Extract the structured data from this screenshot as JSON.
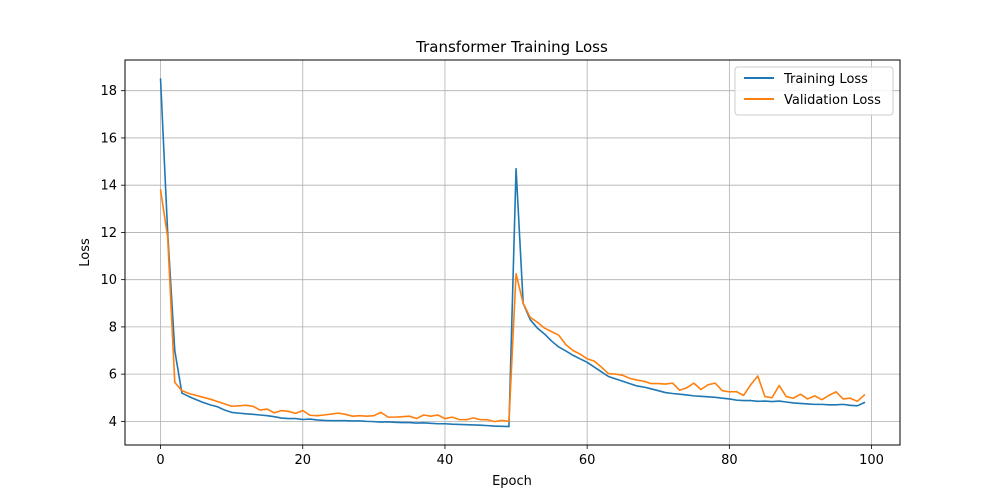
{
  "chart_data": {
    "type": "line",
    "title": "Transformer Training Loss",
    "xlabel": "Epoch",
    "ylabel": "Loss",
    "xlim": [
      -5,
      104
    ],
    "ylim": [
      3.0,
      19.3
    ],
    "xticks": [
      0,
      20,
      40,
      60,
      80,
      100
    ],
    "yticks": [
      4,
      6,
      8,
      10,
      12,
      14,
      16,
      18
    ],
    "grid": true,
    "legend_position": "top-right",
    "x": [
      0,
      1,
      2,
      3,
      4,
      5,
      6,
      7,
      8,
      9,
      10,
      11,
      12,
      13,
      14,
      15,
      16,
      17,
      18,
      19,
      20,
      21,
      22,
      23,
      24,
      25,
      26,
      27,
      28,
      29,
      30,
      31,
      32,
      33,
      34,
      35,
      36,
      37,
      38,
      39,
      40,
      41,
      42,
      43,
      44,
      45,
      46,
      47,
      48,
      49,
      50,
      51,
      52,
      53,
      54,
      55,
      56,
      57,
      58,
      59,
      60,
      61,
      62,
      63,
      64,
      65,
      66,
      67,
      68,
      69,
      70,
      71,
      72,
      73,
      74,
      75,
      76,
      77,
      78,
      79,
      80,
      81,
      82,
      83,
      84,
      85,
      86,
      87,
      88,
      89,
      90,
      91,
      92,
      93,
      94,
      95,
      96,
      97,
      98,
      99
    ],
    "series": [
      {
        "name": "Training Loss",
        "color": "#1f77b4",
        "values": [
          18.5,
          12.0,
          7.0,
          5.2,
          5.05,
          4.92,
          4.8,
          4.7,
          4.62,
          4.48,
          4.38,
          4.35,
          4.32,
          4.3,
          4.27,
          4.24,
          4.2,
          4.14,
          4.12,
          4.12,
          4.08,
          4.1,
          4.06,
          4.04,
          4.03,
          4.03,
          4.03,
          4.02,
          4.02,
          4.0,
          3.99,
          3.97,
          3.98,
          3.96,
          3.95,
          3.95,
          3.93,
          3.94,
          3.92,
          3.9,
          3.9,
          3.88,
          3.87,
          3.86,
          3.85,
          3.84,
          3.82,
          3.8,
          3.79,
          3.78,
          14.7,
          9.0,
          8.3,
          7.95,
          7.7,
          7.4,
          7.15,
          6.98,
          6.8,
          6.65,
          6.5,
          6.3,
          6.1,
          5.9,
          5.8,
          5.7,
          5.6,
          5.5,
          5.45,
          5.38,
          5.3,
          5.22,
          5.18,
          5.15,
          5.12,
          5.08,
          5.06,
          5.04,
          5.02,
          4.98,
          4.95,
          4.9,
          4.88,
          4.88,
          4.85,
          4.86,
          4.84,
          4.86,
          4.82,
          4.78,
          4.76,
          4.74,
          4.72,
          4.72,
          4.7,
          4.7,
          4.72,
          4.68,
          4.66,
          4.8
        ]
      },
      {
        "name": "Validation Loss",
        "color": "#ff7f0e",
        "values": [
          13.8,
          11.8,
          5.65,
          5.3,
          5.18,
          5.1,
          5.02,
          4.94,
          4.84,
          4.74,
          4.64,
          4.66,
          4.68,
          4.64,
          4.48,
          4.52,
          4.36,
          4.46,
          4.42,
          4.34,
          4.46,
          4.26,
          4.24,
          4.27,
          4.31,
          4.35,
          4.3,
          4.22,
          4.24,
          4.22,
          4.24,
          4.38,
          4.18,
          4.18,
          4.2,
          4.22,
          4.12,
          4.27,
          4.22,
          4.27,
          4.12,
          4.18,
          4.08,
          4.07,
          4.15,
          4.07,
          4.07,
          3.99,
          4.04,
          4.0,
          10.25,
          9.0,
          8.4,
          8.2,
          7.95,
          7.8,
          7.65,
          7.25,
          7.0,
          6.85,
          6.65,
          6.55,
          6.3,
          6.02,
          6.0,
          5.95,
          5.82,
          5.75,
          5.7,
          5.6,
          5.6,
          5.58,
          5.62,
          5.32,
          5.42,
          5.62,
          5.35,
          5.55,
          5.62,
          5.3,
          5.25,
          5.26,
          5.1,
          5.55,
          5.92,
          5.05,
          5.0,
          5.52,
          5.05,
          4.98,
          5.15,
          4.95,
          5.08,
          4.92,
          5.1,
          5.25,
          4.95,
          4.98,
          4.85,
          5.12
        ]
      }
    ]
  }
}
